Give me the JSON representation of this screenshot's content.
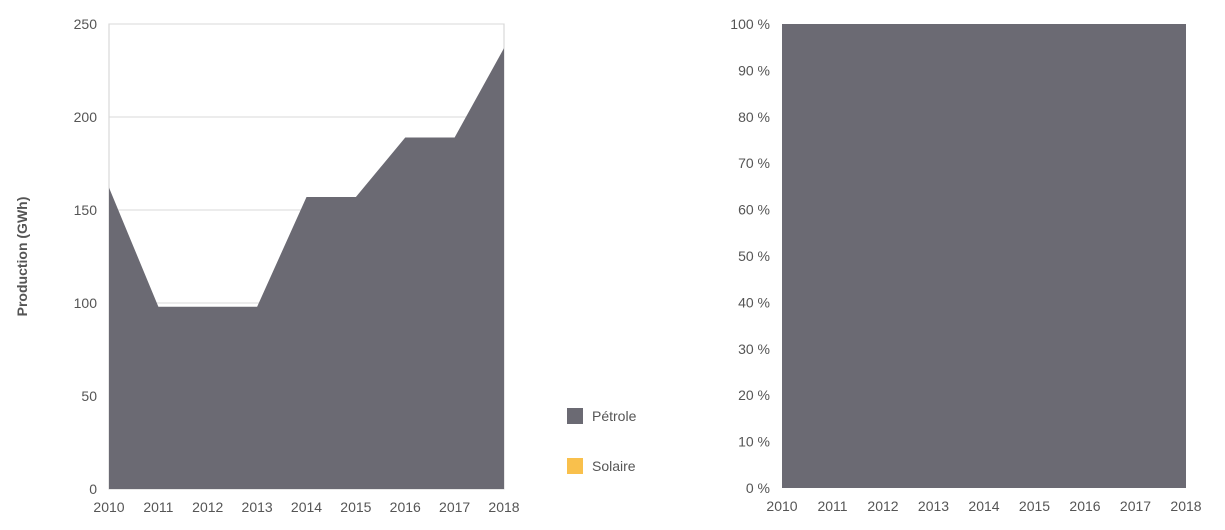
{
  "chart_data": [
    {
      "type": "area",
      "stacked": true,
      "ylabel": "Production (GWh)",
      "ylim": [
        0,
        250
      ],
      "yticks": [
        0,
        50,
        100,
        150,
        200,
        250
      ],
      "x": [
        "2010",
        "2011",
        "2012",
        "2013",
        "2014",
        "2015",
        "2016",
        "2017",
        "2018"
      ],
      "grid": true,
      "series": [
        {
          "name": "Pétrole",
          "color": "#6b6a73",
          "values": [
            162,
            98,
            98,
            98,
            157,
            157,
            189,
            189,
            237
          ]
        },
        {
          "name": "Solaire",
          "color": "#f9c04c",
          "values": [
            0,
            0,
            0,
            0,
            0,
            0,
            0,
            0,
            0
          ]
        }
      ]
    },
    {
      "type": "area",
      "stacked": true,
      "percent": true,
      "ylim": [
        0,
        100
      ],
      "yticks": [
        0,
        10,
        20,
        30,
        40,
        50,
        60,
        70,
        80,
        90,
        100
      ],
      "ytick_labels": [
        "0 %",
        "10 %",
        "20 %",
        "30 %",
        "40 %",
        "50 %",
        "60 %",
        "70 %",
        "80 %",
        "90 %",
        "100 %"
      ],
      "x": [
        "2010",
        "2011",
        "2012",
        "2013",
        "2014",
        "2015",
        "2016",
        "2017",
        "2018"
      ],
      "series": [
        {
          "name": "Pétrole",
          "color": "#6b6a73",
          "values": [
            100,
            100,
            100,
            100,
            100,
            100,
            100,
            100,
            100
          ]
        },
        {
          "name": "Solaire",
          "color": "#f9c04c",
          "values": [
            0,
            0,
            0,
            0,
            0,
            0,
            0,
            0,
            0
          ]
        }
      ]
    }
  ],
  "legend": {
    "items": [
      {
        "label": "Pétrole",
        "color": "#6b6a73"
      },
      {
        "label": "Solaire",
        "color": "#f9c04c"
      }
    ]
  }
}
